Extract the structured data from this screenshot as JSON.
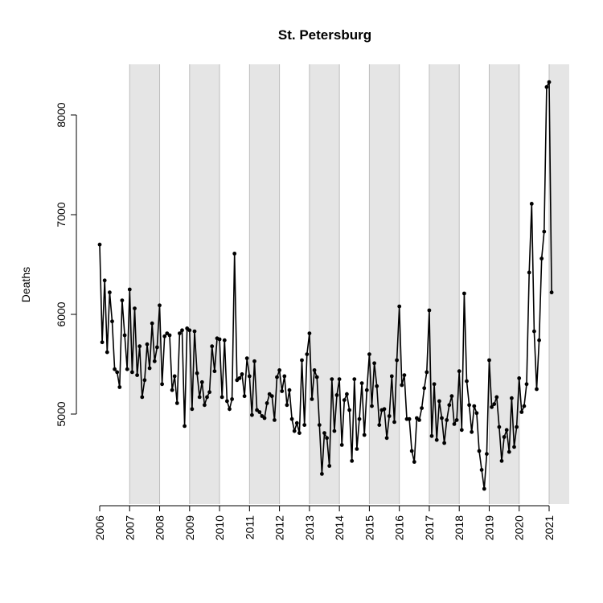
{
  "chart_data": {
    "type": "line",
    "title": "St. Petersburg",
    "xlabel": "",
    "ylabel": "Deaths",
    "xlim": [
      2006,
      2021.67
    ],
    "ylim": [
      4100,
      8600
    ],
    "yticks": [
      5000,
      6000,
      7000,
      8000
    ],
    "yticklabels": [
      "5000",
      "6000",
      "7000",
      "8000"
    ],
    "xticks": [
      2006,
      2007,
      2008,
      2009,
      2010,
      2011,
      2012,
      2013,
      2014,
      2015,
      2016,
      2017,
      2018,
      2019,
      2020,
      2021
    ],
    "xticklabels": [
      "2006",
      "2007",
      "2008",
      "2009",
      "2010",
      "2011",
      "2012",
      "2013",
      "2014",
      "2015",
      "2016",
      "2017",
      "2018",
      "2019",
      "2020",
      "2021"
    ],
    "shaded_years": [
      2007,
      2009,
      2011,
      2013,
      2015,
      2017,
      2019,
      2021
    ],
    "shade_color": "#e5e5e5",
    "line_color": "#000000",
    "grid": false,
    "series": [
      {
        "x_start": 2006.0,
        "x_step": 0.0833333,
        "values": [
          6700,
          5720,
          6340,
          5620,
          6220,
          5930,
          5450,
          5420,
          5270,
          6140,
          5790,
          5450,
          6250,
          5420,
          6060,
          5390,
          5680,
          5170,
          5340,
          5700,
          5460,
          5910,
          5530,
          5670,
          6090,
          5300,
          5780,
          5810,
          5790,
          5240,
          5380,
          5110,
          5810,
          5840,
          4880,
          5860,
          5840,
          5050,
          5830,
          5410,
          5170,
          5320,
          5090,
          5170,
          5220,
          5680,
          5430,
          5760,
          5750,
          5170,
          5740,
          5130,
          5050,
          5150,
          6610,
          5340,
          5360,
          5400,
          5180,
          5560,
          5380,
          4990,
          5530,
          5040,
          5020,
          4980,
          4960,
          5110,
          5200,
          5180,
          4940,
          5370,
          5440,
          5230,
          5380,
          5090,
          5240,
          4950,
          4830,
          4910,
          4810,
          5540,
          4890,
          5600,
          5810,
          5150,
          5440,
          5370,
          4890,
          4400,
          4810,
          4760,
          4480,
          5350,
          4830,
          5190,
          5350,
          4690,
          5140,
          5200,
          5040,
          4530,
          5350,
          4650,
          4950,
          5310,
          4790,
          5240,
          5600,
          5080,
          5510,
          5280,
          4890,
          5040,
          5050,
          4760,
          4980,
          5380,
          4920,
          5540,
          6080,
          5290,
          5390,
          4950,
          4950,
          4630,
          4520,
          4960,
          4940,
          5060,
          5260,
          5420,
          6040,
          4780,
          5300,
          4740,
          5130,
          4960,
          4710,
          4940,
          5090,
          5180,
          4900,
          4940,
          5430,
          4840,
          6210,
          5330,
          5090,
          4820,
          5080,
          5010,
          4630,
          4440,
          4250,
          4600,
          5540,
          5070,
          5100,
          5170,
          4870,
          4530,
          4770,
          4840,
          4620,
          5160,
          4670,
          4870,
          5360,
          5020,
          5080,
          5300,
          6420,
          7110,
          5830,
          5250,
          5740,
          6560,
          6830,
          8280,
          8330,
          6220
        ]
      }
    ]
  }
}
